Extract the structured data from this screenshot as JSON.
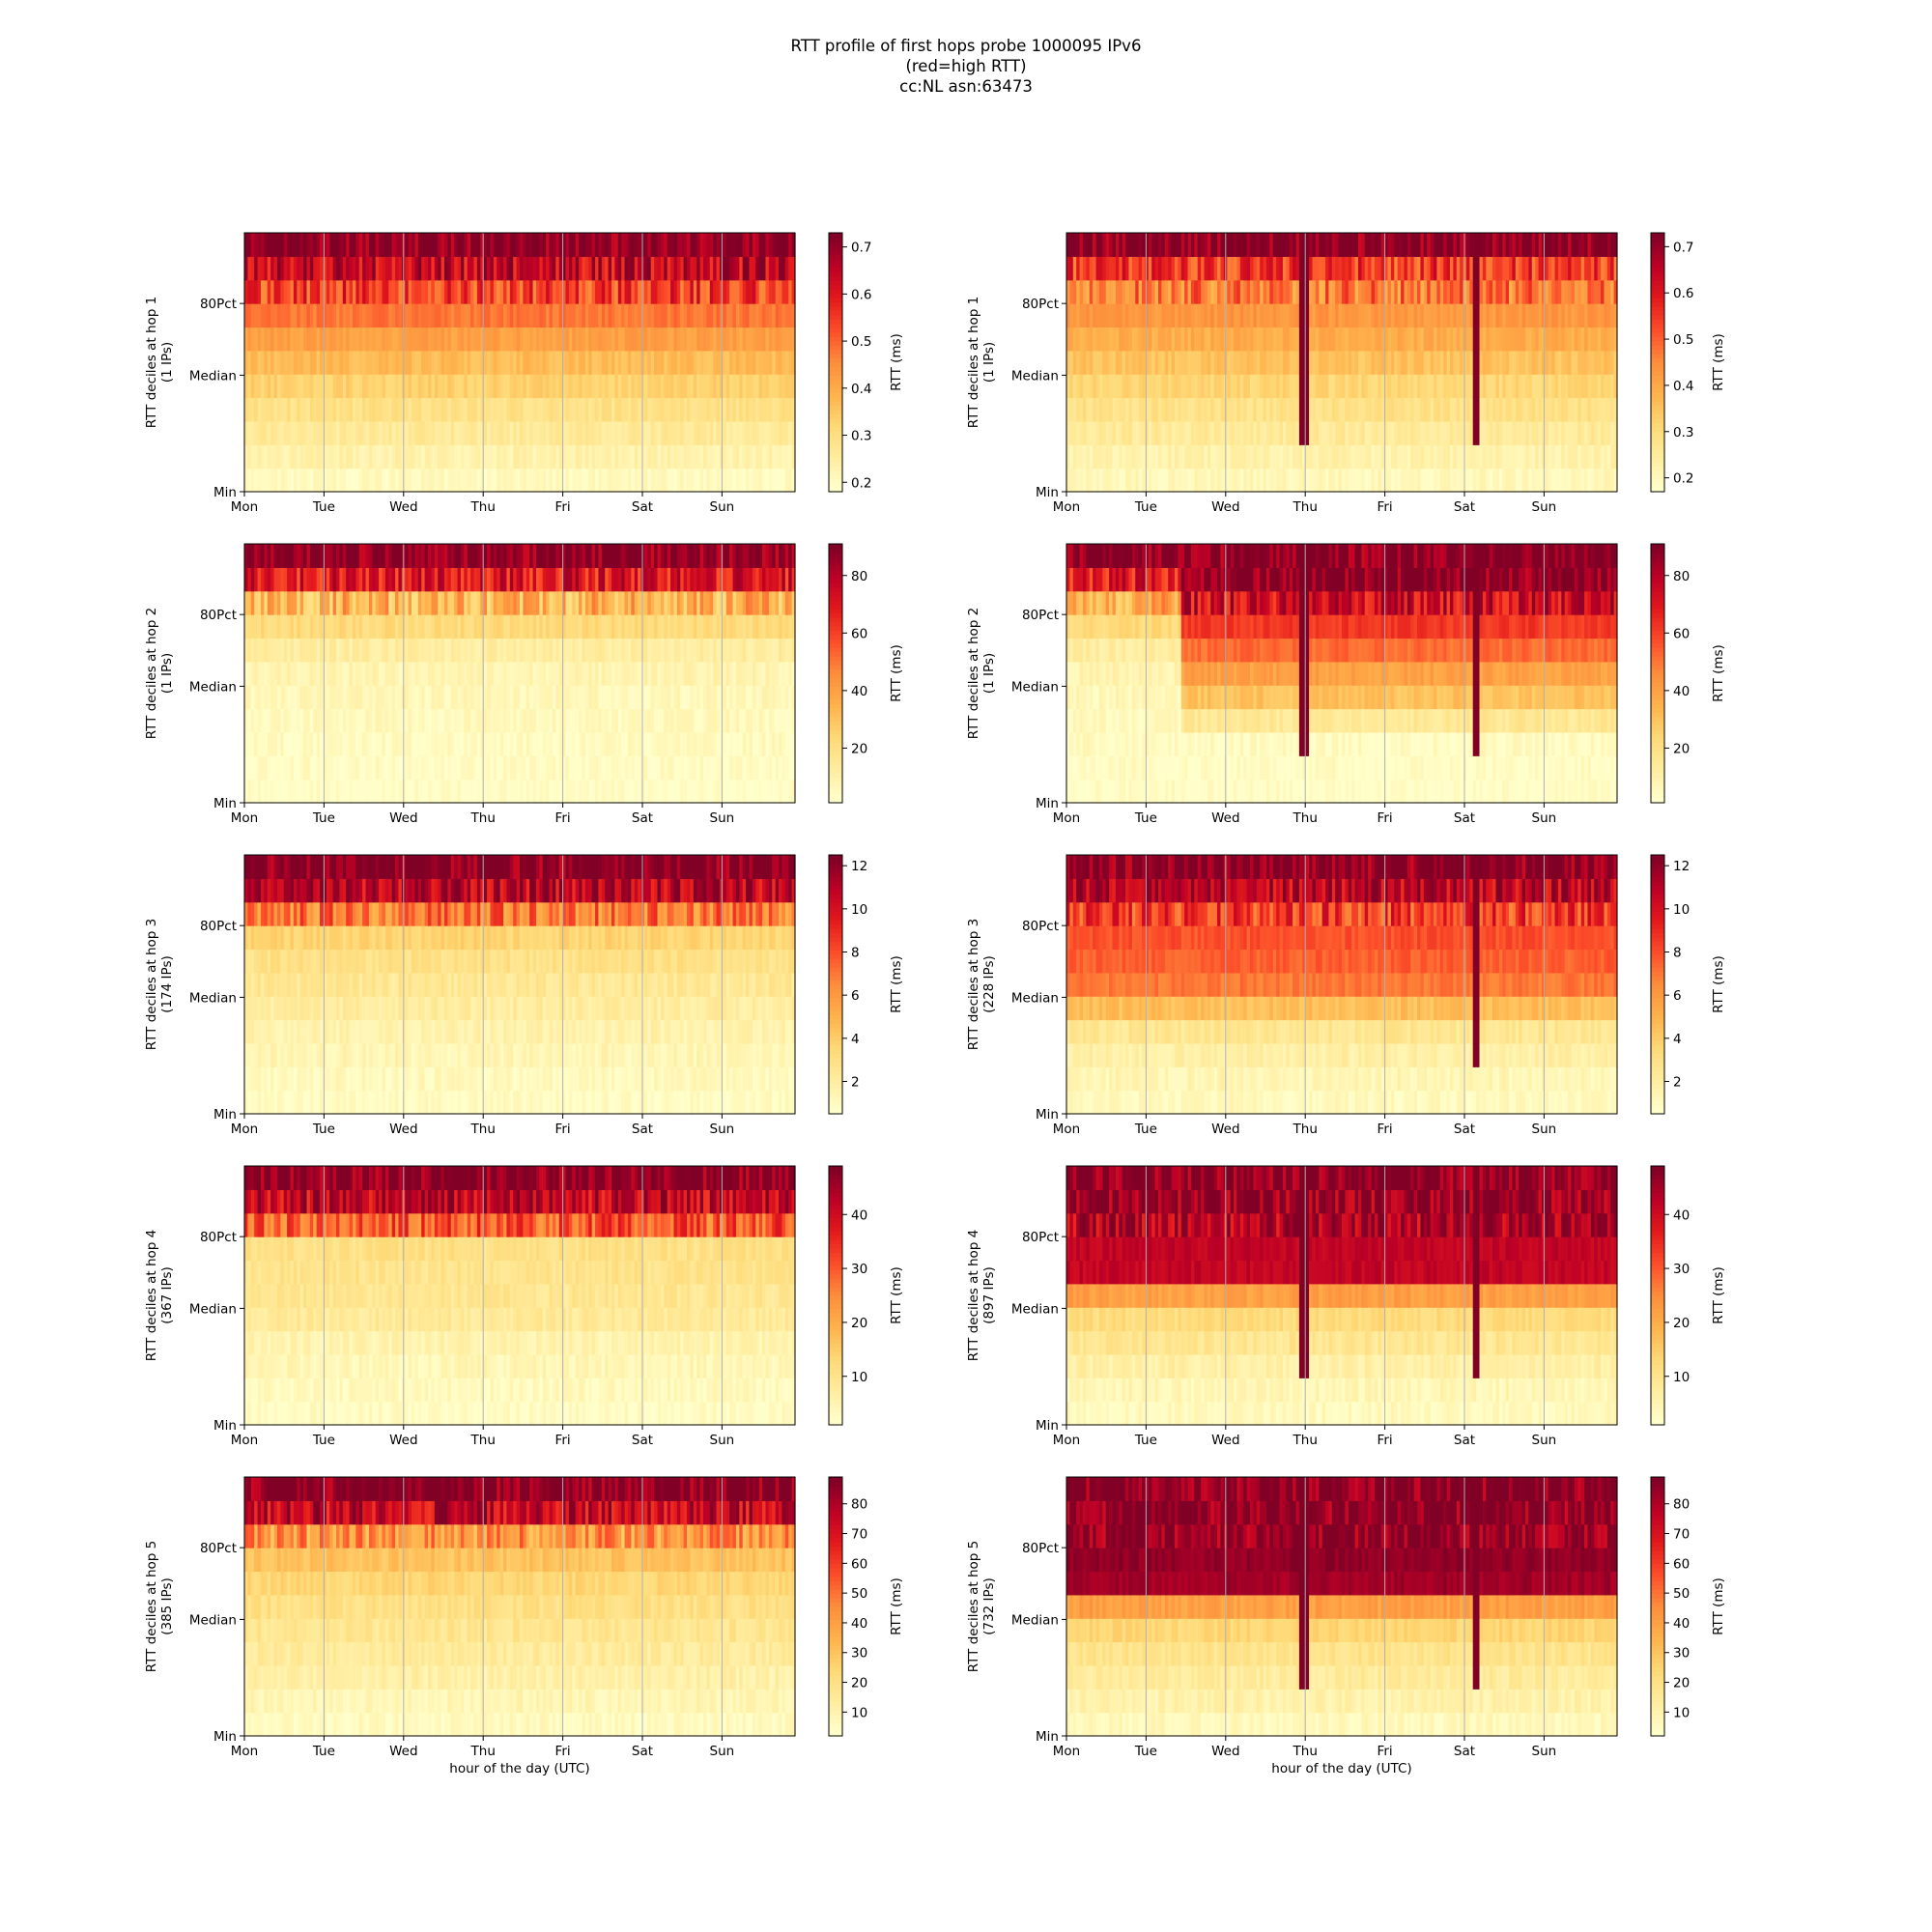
{
  "figure": {
    "title_lines": [
      "RTT profile of first hops probe 1000095 IPv6",
      "(red=high RTT)",
      "cc:NL asn:63473"
    ]
  },
  "chart_data": [
    {
      "type": "heatmap",
      "hop": 1,
      "ylabel": "RTT deciles at hop 1",
      "ylabel2": "(1 IPs)",
      "yticks": [
        "Min",
        "Median",
        "80Pct"
      ],
      "xticks": [
        "Mon",
        "Tue",
        "Wed",
        "Thu",
        "Fri",
        "Sat",
        "Sun"
      ],
      "xlabel": "",
      "colorbar_label": "RTT (ms)",
      "colorbar_ticks": [
        0.2,
        0.3,
        0.4,
        0.5,
        0.6,
        0.7
      ],
      "colorbar_range": [
        0.18,
        0.73
      ],
      "decile_profile": [
        0.2,
        0.23,
        0.26,
        0.29,
        0.33,
        0.37,
        0.42,
        0.48,
        0.55,
        0.64,
        0.73
      ],
      "events": []
    },
    {
      "type": "heatmap",
      "hop": 1,
      "ylabel": "RTT deciles at hop 1",
      "ylabel2": "(1 IPs)",
      "yticks": [
        "Min",
        "Median",
        "80Pct"
      ],
      "xticks": [
        "Mon",
        "Tue",
        "Wed",
        "Thu",
        "Fri",
        "Sat",
        "Sun"
      ],
      "xlabel": "",
      "colorbar_label": "RTT (ms)",
      "colorbar_ticks": [
        0.2,
        0.3,
        0.4,
        0.5,
        0.6,
        0.7
      ],
      "colorbar_range": [
        0.17,
        0.73
      ],
      "decile_profile": [
        0.2,
        0.22,
        0.25,
        0.28,
        0.31,
        0.35,
        0.39,
        0.43,
        0.47,
        0.55,
        0.73
      ],
      "events": [
        {
          "day": 5.2,
          "level": 0.73
        },
        {
          "day": 3.0,
          "level": 0.73
        }
      ]
    },
    {
      "type": "heatmap",
      "hop": 2,
      "ylabel": "RTT deciles at hop 2",
      "ylabel2": "(1 IPs)",
      "yticks": [
        "Min",
        "Median",
        "80Pct"
      ],
      "xticks": [
        "Mon",
        "Tue",
        "Wed",
        "Thu",
        "Fri",
        "Sat",
        "Sun"
      ],
      "xlabel": "",
      "colorbar_label": "RTT (ms)",
      "colorbar_ticks": [
        20,
        40,
        60,
        80
      ],
      "colorbar_range": [
        1,
        91
      ],
      "decile_profile": [
        2,
        3,
        4,
        5,
        6,
        8,
        12,
        22,
        35,
        70,
        91
      ],
      "events": []
    },
    {
      "type": "heatmap",
      "hop": 2,
      "ylabel": "RTT deciles at hop 2",
      "ylabel2": "(1 IPs)",
      "yticks": [
        "Min",
        "Median",
        "80Pct"
      ],
      "xticks": [
        "Mon",
        "Tue",
        "Wed",
        "Thu",
        "Fri",
        "Sat",
        "Sun"
      ],
      "xlabel": "",
      "colorbar_label": "RTT (ms)",
      "colorbar_ticks": [
        20,
        40,
        60,
        80
      ],
      "colorbar_range": [
        1,
        91
      ],
      "decile_profile": [
        2,
        3,
        4,
        15,
        30,
        40,
        52,
        62,
        75,
        91,
        91
      ],
      "before_shift_profile": [
        2,
        3,
        4,
        5,
        6,
        8,
        12,
        22,
        35,
        70,
        91
      ],
      "shift_day": 1.45,
      "events": [
        {
          "day": 5.2,
          "level": 91
        },
        {
          "day": 3.0,
          "level": 91
        }
      ]
    },
    {
      "type": "heatmap",
      "hop": 3,
      "ylabel": "RTT deciles at hop 3",
      "ylabel2": "(174 IPs)",
      "yticks": [
        "Min",
        "Median",
        "80Pct"
      ],
      "xticks": [
        "Mon",
        "Tue",
        "Wed",
        "Thu",
        "Fri",
        "Sat",
        "Sun"
      ],
      "xlabel": "",
      "colorbar_label": "RTT (ms)",
      "colorbar_ticks": [
        2,
        4,
        6,
        8,
        10,
        12
      ],
      "colorbar_range": [
        0.5,
        12.5
      ],
      "decile_profile": [
        0.8,
        1.0,
        1.3,
        1.6,
        2.0,
        2.4,
        2.9,
        3.6,
        7.0,
        11.0,
        12.5
      ],
      "events": []
    },
    {
      "type": "heatmap",
      "hop": 3,
      "ylabel": "RTT deciles at hop 3",
      "ylabel2": "(228 IPs)",
      "yticks": [
        "Min",
        "Median",
        "80Pct"
      ],
      "xticks": [
        "Mon",
        "Tue",
        "Wed",
        "Thu",
        "Fri",
        "Sat",
        "Sun"
      ],
      "xlabel": "",
      "colorbar_label": "RTT (ms)",
      "colorbar_ticks": [
        2,
        4,
        6,
        8,
        10,
        12
      ],
      "colorbar_range": [
        0.5,
        12.5
      ],
      "decile_profile": [
        1.0,
        1.3,
        1.8,
        2.5,
        4.5,
        7.0,
        7.6,
        8.0,
        8.6,
        11.0,
        12.5
      ],
      "events": [
        {
          "day": 5.2,
          "level": 12.5
        }
      ]
    },
    {
      "type": "heatmap",
      "hop": 4,
      "ylabel": "RTT deciles at hop 4",
      "ylabel2": "(367 IPs)",
      "yticks": [
        "Min",
        "Median",
        "80Pct"
      ],
      "xticks": [
        "Mon",
        "Tue",
        "Wed",
        "Thu",
        "Fri",
        "Sat",
        "Sun"
      ],
      "xlabel": "",
      "colorbar_label": "RTT (ms)",
      "colorbar_ticks": [
        10,
        20,
        30,
        40
      ],
      "colorbar_range": [
        1,
        49
      ],
      "decile_profile": [
        2,
        3,
        4,
        5,
        8,
        9,
        10,
        11,
        30,
        42,
        49
      ],
      "events": []
    },
    {
      "type": "heatmap",
      "hop": 4,
      "ylabel": "RTT deciles at hop 4",
      "ylabel2": "(897 IPs)",
      "yticks": [
        "Min",
        "Median",
        "80Pct"
      ],
      "xticks": [
        "Mon",
        "Tue",
        "Wed",
        "Thu",
        "Fri",
        "Sat",
        "Sun"
      ],
      "xlabel": "",
      "colorbar_label": "RTT (ms)",
      "colorbar_ticks": [
        10,
        20,
        30,
        40
      ],
      "colorbar_range": [
        1,
        49
      ],
      "decile_profile": [
        3,
        4,
        6,
        9,
        12,
        22,
        42,
        42,
        44,
        47,
        49
      ],
      "events": [
        {
          "day": 5.2,
          "level": 49
        },
        {
          "day": 3.0,
          "level": 49
        }
      ]
    },
    {
      "type": "heatmap",
      "hop": 5,
      "ylabel": "RTT deciles at hop 5",
      "ylabel2": "(385 IPs)",
      "yticks": [
        "Min",
        "Median",
        "80Pct"
      ],
      "xticks": [
        "Mon",
        "Tue",
        "Wed",
        "Thu",
        "Fri",
        "Sat",
        "Sun"
      ],
      "xlabel": "hour of the day (UTC)",
      "colorbar_label": "RTT (ms)",
      "colorbar_ticks": [
        10,
        20,
        30,
        40,
        50,
        60,
        70,
        80
      ],
      "colorbar_range": [
        2,
        89
      ],
      "decile_profile": [
        5,
        8,
        11,
        14,
        17,
        20,
        24,
        30,
        42,
        75,
        89
      ],
      "events": []
    },
    {
      "type": "heatmap",
      "hop": 5,
      "ylabel": "RTT deciles at hop 5",
      "ylabel2": "(732 IPs)",
      "yticks": [
        "Min",
        "Median",
        "80Pct"
      ],
      "xticks": [
        "Mon",
        "Tue",
        "Wed",
        "Thu",
        "Fri",
        "Sat",
        "Sun"
      ],
      "xlabel": "hour of the day (UTC)",
      "colorbar_label": "RTT (ms)",
      "colorbar_ticks": [
        10,
        20,
        30,
        40,
        50,
        60,
        70,
        80
      ],
      "colorbar_range": [
        2,
        89
      ],
      "decile_profile": [
        6,
        10,
        14,
        18,
        24,
        40,
        83,
        86,
        87,
        88,
        89
      ],
      "events": [
        {
          "day": 5.2,
          "level": 89
        },
        {
          "day": 3.0,
          "level": 89
        }
      ]
    }
  ]
}
